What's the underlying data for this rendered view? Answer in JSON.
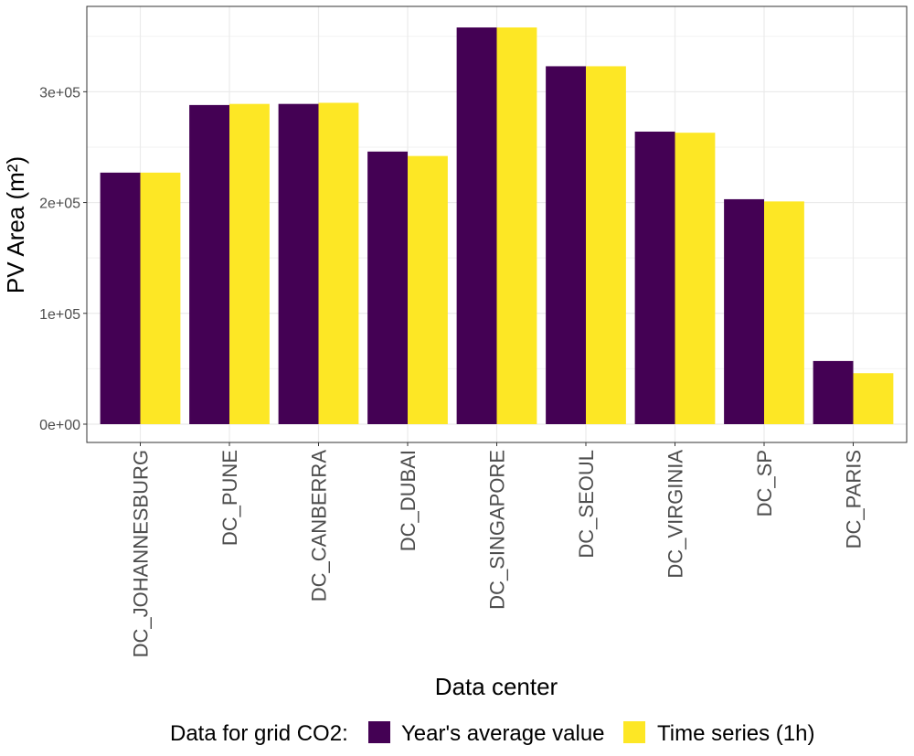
{
  "chart_data": {
    "type": "bar",
    "title": "",
    "xlabel": "Data center",
    "ylabel": "PV Area (m²)",
    "categories": [
      "DC_JOHANNESBURG",
      "DC_PUNE",
      "DC_CANBERRA",
      "DC_DUBAI",
      "DC_SINGAPORE",
      "DC_SEOUL",
      "DC_VIRGINIA",
      "DC_SP",
      "DC_PARIS"
    ],
    "series": [
      {
        "name": "Year's average value",
        "color": "#440154",
        "values": [
          227000,
          288000,
          289000,
          246000,
          358000,
          323000,
          264000,
          203000,
          57000
        ]
      },
      {
        "name": "Time series (1h)",
        "color": "#FDE725",
        "values": [
          227000,
          289000,
          290000,
          242000,
          358000,
          323000,
          263000,
          201000,
          46000
        ]
      }
    ],
    "ylim": [
      -16500,
      377000
    ],
    "yticks": [
      0,
      100000,
      200000,
      300000
    ],
    "ytick_labels": [
      "0e+00",
      "1e+05",
      "2e+05",
      "3e+05"
    ],
    "grid": true,
    "legend": {
      "title": "Data for grid CO2:",
      "placement": "bottom"
    }
  }
}
